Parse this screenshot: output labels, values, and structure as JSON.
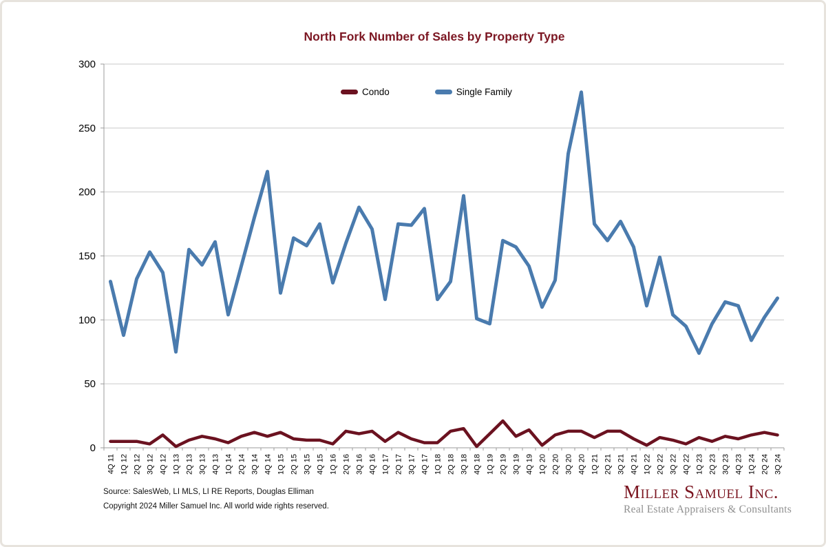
{
  "title": "North Fork Number of Sales by Property Type",
  "legend": {
    "items": [
      {
        "label": "Condo",
        "color": "#6b1220"
      },
      {
        "label": "Single Family",
        "color": "#4a7bae"
      }
    ]
  },
  "footer": {
    "source_line": "Source: SalesWeb, LI MLS, LI RE Reports, Douglas Elliman",
    "copyright_line": "Copyright 2024 Miller Samuel Inc.  All world wide rights reserved."
  },
  "logo": {
    "name": "Miller Samuel Inc.",
    "tagline": "Real Estate Appraisers & Consultants"
  },
  "chart_data": {
    "type": "line",
    "title": "North Fork Number of Sales by Property Type",
    "xlabel": "",
    "ylabel": "",
    "ylim": [
      0,
      300
    ],
    "ytick_step": 50,
    "grid": "horizontal",
    "legend_position": "top-center",
    "categories": [
      "4Q 11",
      "1Q 12",
      "2Q 12",
      "3Q 12",
      "4Q 12",
      "1Q 13",
      "2Q 13",
      "3Q 13",
      "4Q 13",
      "1Q 14",
      "2Q 14",
      "3Q 14",
      "4Q 14",
      "1Q 15",
      "2Q 15",
      "3Q 15",
      "4Q 15",
      "1Q 16",
      "2Q 16",
      "3Q 16",
      "4Q 16",
      "1Q 17",
      "2Q 17",
      "3Q 17",
      "4Q 17",
      "1Q 18",
      "2Q 18",
      "3Q 18",
      "4Q 18",
      "1Q 19",
      "2Q 19",
      "3Q 19",
      "4Q 19",
      "1Q 20",
      "2Q 20",
      "3Q 20",
      "4Q 20",
      "1Q 21",
      "2Q 21",
      "3Q 21",
      "4Q 21",
      "1Q 22",
      "2Q 22",
      "3Q 22",
      "4Q 22",
      "1Q 23",
      "2Q 23",
      "3Q 23",
      "4Q 23",
      "1Q 24",
      "2Q 24",
      "3Q 24"
    ],
    "series": [
      {
        "name": "Condo",
        "color": "#6b1220",
        "values": [
          5,
          5,
          5,
          3,
          10,
          1,
          6,
          9,
          7,
          4,
          9,
          12,
          9,
          12,
          7,
          6,
          6,
          3,
          13,
          11,
          13,
          5,
          12,
          7,
          4,
          4,
          13,
          15,
          1,
          11,
          21,
          9,
          14,
          2,
          10,
          13,
          13,
          8,
          13,
          13,
          7,
          2,
          8,
          6,
          3,
          8,
          5,
          9,
          7,
          10,
          12,
          10
        ]
      },
      {
        "name": "Single Family",
        "color": "#4a7bae",
        "values": [
          130,
          88,
          132,
          153,
          137,
          75,
          155,
          143,
          161,
          104,
          142,
          180,
          216,
          121,
          164,
          158,
          175,
          129,
          160,
          188,
          171,
          116,
          175,
          174,
          187,
          116,
          130,
          197,
          101,
          97,
          162,
          157,
          142,
          110,
          131,
          230,
          278,
          175,
          162,
          177,
          157,
          111,
          149,
          104,
          95,
          74,
          97,
          114,
          111,
          84,
          102,
          117
        ]
      }
    ]
  }
}
